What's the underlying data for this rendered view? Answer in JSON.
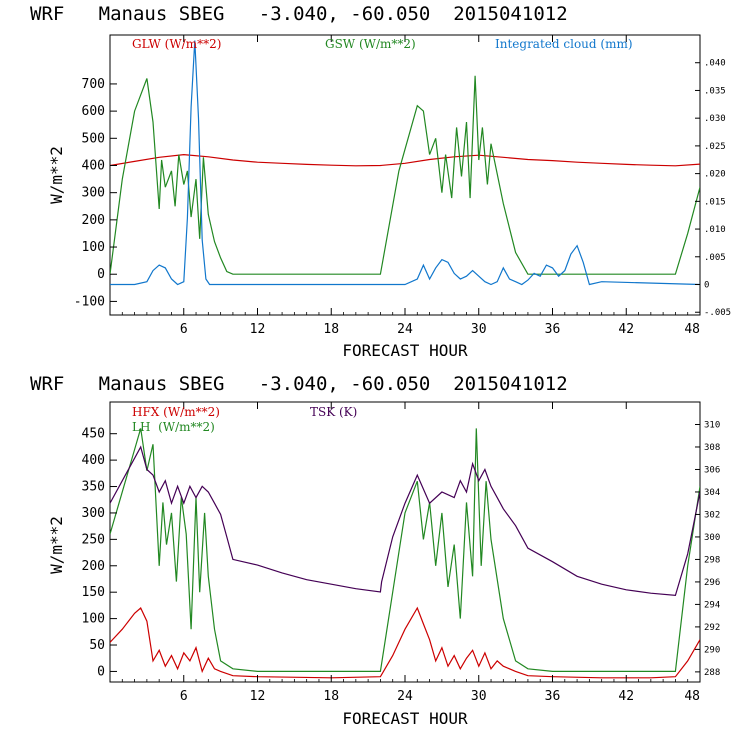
{
  "chart_data": [
    {
      "type": "line",
      "title": "WRF   Manaus SBEG   -3.040, -60.050  2015041012",
      "xlabel": "FORECAST HOUR",
      "ylabel": "W/m**2",
      "xlim": [
        0,
        48
      ],
      "ylim": [
        -150,
        880
      ],
      "xticks": [
        6,
        12,
        18,
        24,
        30,
        36,
        42,
        48
      ],
      "yticks": [
        -100,
        0,
        100,
        200,
        300,
        400,
        500,
        600,
        700
      ],
      "right_axis": {
        "label": "Integrated cloud (mm)",
        "ticks": [
          -0.005,
          0,
          0.005,
          0.01,
          0.015,
          0.02,
          0.025,
          0.03,
          0.035,
          0.04
        ],
        "tick_labels": [
          "-.005",
          "0",
          ".005",
          ".010",
          ".015",
          ".020",
          ".025",
          ".030",
          ".035",
          ".040"
        ],
        "range": [
          -0.0055,
          0.045
        ]
      },
      "legend": [
        "GLW (W/m**2)",
        "GSW (W/m**2)",
        "Integrated cloud (mm)"
      ],
      "series": [
        {
          "name": "GLW (W/m**2)",
          "color": "#cc0000",
          "axis": "left",
          "x": [
            0,
            2,
            4,
            6,
            8,
            10,
            12,
            14,
            16,
            18,
            20,
            22,
            24,
            26,
            28,
            30,
            32,
            34,
            36,
            38,
            40,
            42,
            44,
            46,
            48
          ],
          "y": [
            400,
            415,
            430,
            440,
            432,
            420,
            412,
            408,
            404,
            401,
            399,
            400,
            408,
            422,
            432,
            438,
            430,
            422,
            418,
            412,
            408,
            404,
            401,
            399,
            405
          ]
        },
        {
          "name": "GSW (W/m**2)",
          "color": "#228822",
          "axis": "left",
          "x": [
            0,
            1,
            2,
            3,
            3.5,
            4,
            4.2,
            4.5,
            5,
            5.3,
            5.6,
            6,
            6.3,
            6.6,
            7,
            7.3,
            7.6,
            8,
            8.5,
            9,
            9.5,
            10,
            12,
            18,
            22,
            23.5,
            25,
            25.5,
            26,
            26.5,
            27,
            27.3,
            27.8,
            28.2,
            28.6,
            29,
            29.3,
            29.7,
            30,
            30.3,
            30.7,
            31,
            32,
            33,
            34,
            36,
            42,
            46,
            47,
            48
          ],
          "y": [
            0,
            350,
            600,
            720,
            560,
            240,
            420,
            320,
            380,
            250,
            440,
            330,
            380,
            210,
            350,
            130,
            430,
            220,
            120,
            60,
            10,
            0,
            0,
            0,
            0,
            380,
            620,
            600,
            440,
            500,
            300,
            440,
            280,
            540,
            360,
            560,
            280,
            730,
            420,
            540,
            330,
            480,
            260,
            80,
            0,
            0,
            0,
            0,
            150,
            320
          ]
        },
        {
          "name": "Integrated cloud (mm)",
          "color": "#1177cc",
          "axis": "right",
          "x": [
            0,
            2,
            3,
            3.5,
            4,
            4.5,
            5,
            5.5,
            6,
            6.3,
            6.6,
            6.9,
            7.2,
            7.5,
            7.8,
            8.1,
            8.5,
            9,
            10,
            24,
            25,
            25.5,
            26,
            26.5,
            27,
            27.5,
            28,
            28.5,
            29,
            29.5,
            30,
            30.5,
            31,
            31.5,
            32,
            32.5,
            33,
            33.5,
            34,
            34.5,
            35,
            35.5,
            36,
            36.5,
            37,
            37.5,
            38,
            38.5,
            39,
            40,
            48
          ],
          "y": [
            0,
            0,
            0.0005,
            0.0025,
            0.0035,
            0.003,
            0.001,
            0,
            0.0005,
            0.012,
            0.032,
            0.044,
            0.03,
            0.008,
            0.001,
            0,
            0,
            0,
            0,
            0,
            0.001,
            0.0035,
            0.001,
            0.003,
            0.0045,
            0.004,
            0.002,
            0.001,
            0.0015,
            0.0025,
            0.0015,
            0.0005,
            0,
            0.0005,
            0.003,
            0.001,
            0.0005,
            0,
            0.0008,
            0.002,
            0.0015,
            0.0035,
            0.003,
            0.0015,
            0.0025,
            0.0055,
            0.007,
            0.004,
            0,
            0.0005,
            0
          ]
        }
      ]
    },
    {
      "type": "line",
      "title": "WRF   Manaus SBEG   -3.040, -60.050  2015041012",
      "xlabel": "FORECAST HOUR",
      "ylabel": "W/m**2",
      "xlim": [
        0,
        48
      ],
      "ylim": [
        -20,
        510
      ],
      "xticks": [
        6,
        12,
        18,
        24,
        30,
        36,
        42,
        48
      ],
      "yticks": [
        0,
        50,
        100,
        150,
        200,
        250,
        300,
        350,
        400,
        450
      ],
      "right_axis": {
        "label": "TSK (K)",
        "ticks": [
          288,
          290,
          292,
          294,
          296,
          298,
          300,
          302,
          304,
          306,
          308,
          310
        ],
        "tick_labels": [
          "288",
          "290",
          "292",
          "294",
          "296",
          "298",
          "300",
          "302",
          "304",
          "306",
          "308",
          "310"
        ],
        "range": [
          287.1,
          312
        ]
      },
      "legend": [
        "HFX (W/m**2)",
        "LH  (W/m**2)",
        "TSK (K)"
      ],
      "series": [
        {
          "name": "HFX (W/m**2)",
          "color": "#cc0000",
          "axis": "left",
          "x": [
            0,
            1,
            2,
            2.5,
            3,
            3.5,
            4,
            4.5,
            5,
            5.5,
            6,
            6.5,
            7,
            7.5,
            8,
            8.5,
            9,
            10,
            12,
            18,
            22,
            23,
            24,
            25,
            25.5,
            26,
            26.5,
            27,
            27.5,
            28,
            28.5,
            29,
            29.5,
            30,
            30.5,
            31,
            31.5,
            32,
            33,
            34,
            36,
            40,
            44,
            46,
            47,
            48
          ],
          "y": [
            55,
            80,
            110,
            120,
            95,
            20,
            40,
            10,
            30,
            5,
            35,
            20,
            45,
            0,
            25,
            5,
            0,
            -8,
            -10,
            -12,
            -10,
            30,
            80,
            120,
            90,
            60,
            20,
            45,
            10,
            30,
            5,
            25,
            40,
            10,
            35,
            5,
            20,
            10,
            0,
            -8,
            -10,
            -12,
            -12,
            -10,
            20,
            60
          ]
        },
        {
          "name": "LH  (W/m**2)",
          "color": "#228822",
          "axis": "left",
          "x": [
            0,
            1,
            2,
            2.5,
            3,
            3.5,
            4,
            4.3,
            4.6,
            5,
            5.4,
            5.8,
            6.2,
            6.6,
            7,
            7.3,
            7.7,
            8,
            8.5,
            9,
            10,
            12,
            18,
            22,
            23,
            24,
            25,
            25.5,
            26,
            26.5,
            27,
            27.5,
            28,
            28.5,
            29,
            29.5,
            29.8,
            30.2,
            30.6,
            31,
            32,
            33,
            34,
            36,
            42,
            46,
            47,
            48
          ],
          "y": [
            260,
            340,
            420,
            460,
            380,
            430,
            200,
            320,
            240,
            300,
            170,
            330,
            260,
            80,
            330,
            150,
            300,
            180,
            80,
            20,
            5,
            0,
            0,
            0,
            150,
            300,
            360,
            250,
            320,
            200,
            300,
            160,
            240,
            100,
            320,
            180,
            460,
            200,
            360,
            250,
            100,
            20,
            5,
            0,
            0,
            0,
            200,
            350
          ]
        },
        {
          "name": "TSK (K)",
          "color": "#440055",
          "axis": "right",
          "x": [
            0,
            1,
            2,
            2.5,
            3,
            3.5,
            4,
            4.5,
            5,
            5.5,
            6,
            6.5,
            7,
            7.5,
            8,
            8.5,
            9,
            9.5,
            10,
            12,
            14,
            16,
            18,
            20,
            22,
            22.1,
            23,
            24,
            25,
            26,
            27,
            28,
            28.5,
            29,
            29.5,
            30,
            30.5,
            31,
            31.5,
            32,
            33,
            34,
            36,
            38,
            40,
            42,
            44,
            46,
            47,
            48
          ],
          "y": [
            303,
            305,
            307,
            308,
            306,
            305.5,
            304,
            305,
            303,
            304.5,
            303,
            304.5,
            303.5,
            304.5,
            304,
            303,
            302,
            300,
            298,
            297.5,
            296.8,
            296.2,
            295.8,
            295.4,
            295.1,
            296,
            300,
            303,
            305.5,
            303,
            304,
            303.5,
            305,
            304,
            306.5,
            305,
            306,
            304.5,
            303.5,
            302.5,
            301,
            299,
            297.8,
            296.5,
            295.8,
            295.3,
            295,
            294.8,
            298.5,
            304
          ]
        }
      ]
    }
  ]
}
